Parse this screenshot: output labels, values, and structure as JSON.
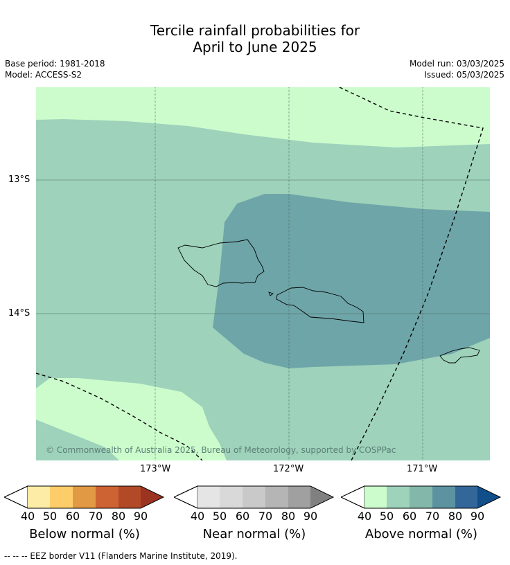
{
  "header": {
    "title_line1": "Tercile rainfall probabilities for",
    "title_line2": "April to June 2025",
    "base_period": "Base period: 1981-2018",
    "model": "Model: ACCESS-S2",
    "model_run": "Model run: 03/03/2025",
    "issued": "Issued: 05/03/2025"
  },
  "map": {
    "lat_labels": [
      "13°S",
      "14°S"
    ],
    "lon_labels": [
      "173°W",
      "172°W",
      "171°W"
    ],
    "copyright": "© Commonwealth of Australia 2025, Bureau of Meteorology, supported by COSPPac",
    "colors": {
      "above_40_50": "#ccfccc",
      "above_50_60": "#9ed2bb",
      "above_60_70": "#6ea5a8"
    }
  },
  "legends": [
    {
      "title": "Below normal (%)",
      "ticks": [
        "40",
        "50",
        "60",
        "70",
        "80",
        "90"
      ],
      "colors": [
        "#fdeca6",
        "#fdcd6a",
        "#e29944",
        "#cd6232",
        "#b24a28",
        "#9a3420"
      ]
    },
    {
      "title": "Near normal (%)",
      "ticks": [
        "40",
        "50",
        "60",
        "70",
        "80",
        "90"
      ],
      "colors": [
        "#e5e5e5",
        "#d9d9d9",
        "#c9c9c9",
        "#b5b5b5",
        "#a0a0a0",
        "#808080"
      ]
    },
    {
      "title": "Above normal (%)",
      "ticks": [
        "40",
        "50",
        "60",
        "70",
        "80",
        "90"
      ],
      "colors": [
        "#ccfccc",
        "#9ed2bb",
        "#82b7aa",
        "#5c93a1",
        "#33679a",
        "#104f8a"
      ]
    }
  ],
  "footnote": "--  --  -- EEZ border V11 (Flanders Marine Institute, 2019)."
}
